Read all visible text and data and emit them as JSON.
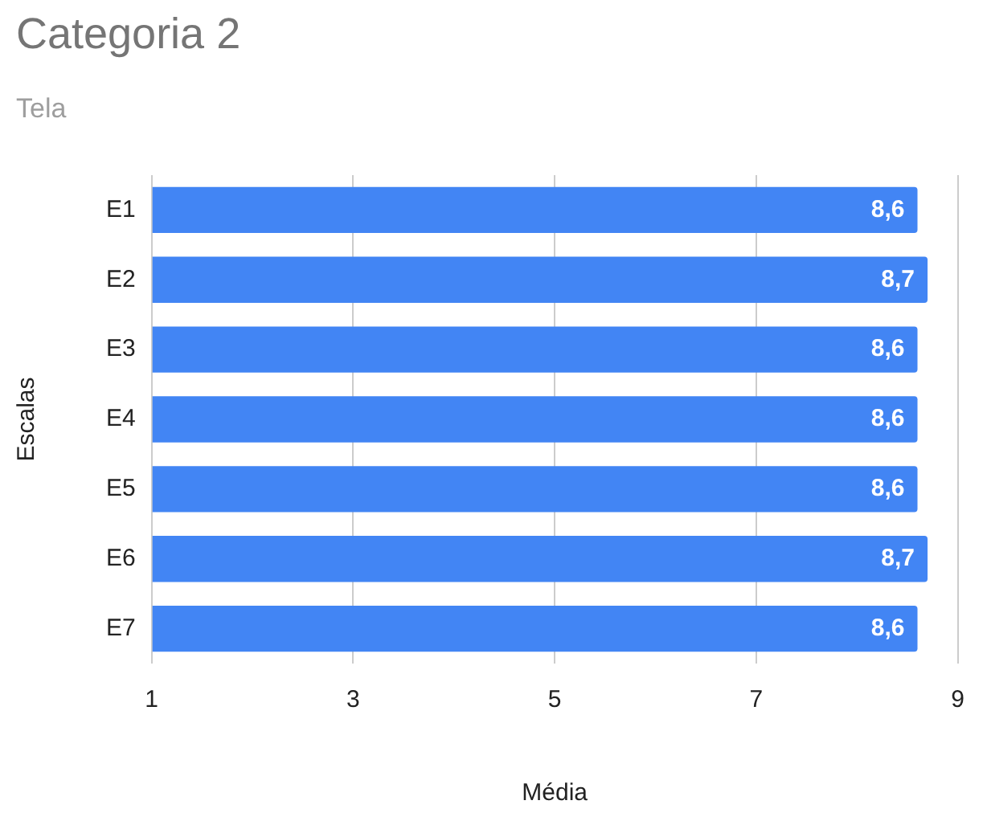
{
  "chart_data": {
    "type": "bar",
    "orientation": "horizontal",
    "title": "Categoria 2",
    "subtitle": "Tela",
    "xlabel": "Média",
    "ylabel": "Escalas",
    "categories": [
      "E1",
      "E2",
      "E3",
      "E4",
      "E5",
      "E6",
      "E7"
    ],
    "series": [
      {
        "color": "#4285f4",
        "values": [
          8.6,
          8.7,
          8.6,
          8.6,
          8.6,
          8.7,
          8.6
        ],
        "value_labels": [
          "8,6",
          "8,7",
          "8,6",
          "8,6",
          "8,6",
          "8,7",
          "8,6"
        ]
      }
    ],
    "xlim": [
      1,
      9
    ],
    "xticks": [
      1,
      3,
      5,
      7,
      9
    ],
    "grid": "x",
    "legend": false
  }
}
